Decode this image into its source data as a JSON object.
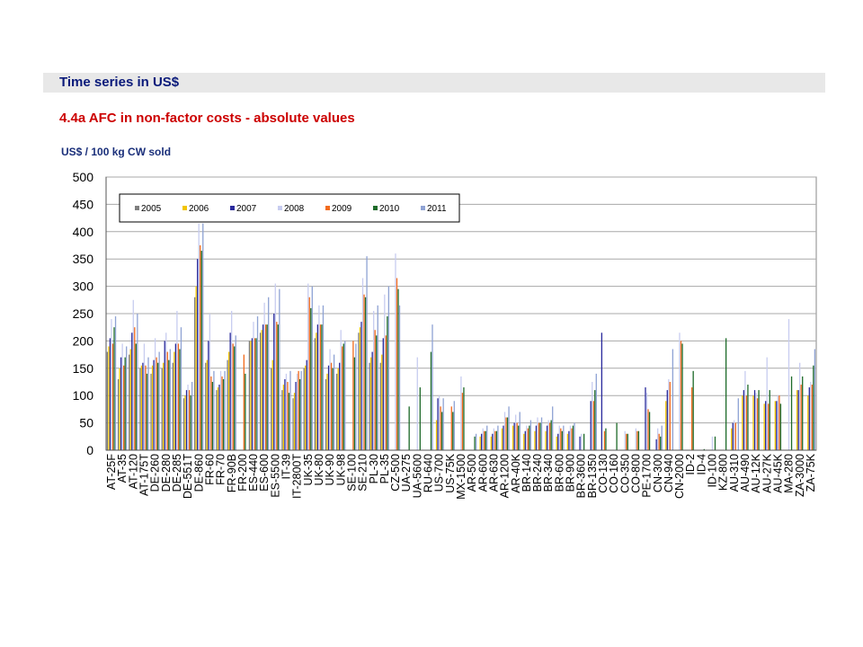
{
  "header": {
    "section_title": "Time series in US$",
    "subtitle": "4.4a   AFC in non-factor costs - absolute values"
  },
  "chart_data": {
    "type": "bar",
    "ylabel": "US$ / 100 kg CW sold",
    "ylim": [
      0,
      500
    ],
    "yticks": [
      0,
      50,
      100,
      150,
      200,
      250,
      300,
      350,
      400,
      450,
      500
    ],
    "grid": true,
    "legend_position": "top-left",
    "series": [
      {
        "name": "2005",
        "color": "#7f7f7f"
      },
      {
        "name": "2006",
        "color": "#f2c500"
      },
      {
        "name": "2007",
        "color": "#2a2a9c"
      },
      {
        "name": "2008",
        "color": "#c8cdf0"
      },
      {
        "name": "2009",
        "color": "#f26b1d"
      },
      {
        "name": "2010",
        "color": "#1e6b2a"
      },
      {
        "name": "2011",
        "color": "#8fa3d4"
      }
    ],
    "categories": [
      {
        "label": "AT-25F",
        "values": [
          180,
          190,
          205,
          240,
          195,
          225,
          245
        ]
      },
      {
        "label": "AT-35",
        "values": [
          130,
          150,
          170,
          195,
          155,
          170,
          190
        ]
      },
      {
        "label": "AT-120",
        "values": [
          175,
          185,
          215,
          275,
          225,
          195,
          250
        ]
      },
      {
        "label": "AT-175T",
        "values": [
          150,
          155,
          160,
          195,
          155,
          140,
          170
        ]
      },
      {
        "label": "DE-260",
        "values": [
          140,
          155,
          165,
          205,
          170,
          160,
          180
        ]
      },
      {
        "label": "DE-280",
        "values": [
          150,
          160,
          200,
          215,
          180,
          165,
          185
        ]
      },
      {
        "label": "DE-285",
        "values": [
          160,
          180,
          195,
          255,
          195,
          185,
          225
        ]
      },
      {
        "label": "DE-551T",
        "values": [
          95,
          100,
          110,
          120,
          110,
          100,
          125
        ]
      },
      {
        "label": "DE-860",
        "values": [
          280,
          300,
          350,
          415,
          375,
          365,
          415
        ]
      },
      {
        "label": "FR-60",
        "values": [
          160,
          165,
          200,
          250,
          135,
          125,
          145
        ]
      },
      {
        "label": "FR-70",
        "values": [
          110,
          115,
          120,
          145,
          135,
          130,
          145
        ]
      },
      {
        "label": "FR-90B",
        "values": [
          165,
          180,
          215,
          255,
          195,
          190,
          210
        ]
      },
      {
        "label": "FR-200",
        "values": [
          0,
          0,
          0,
          0,
          175,
          140,
          0
        ]
      },
      {
        "label": "ES-440",
        "values": [
          200,
          200,
          205,
          235,
          205,
          205,
          245
        ]
      },
      {
        "label": "ES-600",
        "values": [
          215,
          220,
          230,
          270,
          230,
          230,
          280
        ]
      },
      {
        "label": "ES-5500",
        "values": [
          150,
          165,
          250,
          305,
          235,
          230,
          295
        ]
      },
      {
        "label": "IT-39",
        "values": [
          110,
          120,
          130,
          140,
          125,
          105,
          145
        ]
      },
      {
        "label": "IT-2800T",
        "values": [
          95,
          105,
          125,
          140,
          145,
          130,
          145
        ]
      },
      {
        "label": "UK-35",
        "values": [
          150,
          155,
          165,
          305,
          280,
          260,
          300
        ]
      },
      {
        "label": "UK-80",
        "values": [
          205,
          215,
          230,
          265,
          230,
          230,
          265
        ]
      },
      {
        "label": "UK-90",
        "values": [
          130,
          140,
          155,
          185,
          160,
          150,
          175
        ]
      },
      {
        "label": "UK-98",
        "values": [
          140,
          150,
          160,
          220,
          190,
          195,
          200
        ]
      },
      {
        "label": "SE-100",
        "values": [
          0,
          0,
          0,
          0,
          200,
          170,
          195
        ]
      },
      {
        "label": "SE-210",
        "values": [
          215,
          225,
          235,
          315,
          285,
          280,
          355
        ]
      },
      {
        "label": "PL-30",
        "values": [
          160,
          170,
          180,
          255,
          220,
          210,
          265
        ]
      },
      {
        "label": "PL-35",
        "values": [
          160,
          175,
          205,
          285,
          210,
          245,
          300
        ]
      },
      {
        "label": "CZ-500",
        "values": [
          0,
          0,
          0,
          360,
          315,
          295,
          265
        ]
      },
      {
        "label": "UA-275",
        "values": [
          0,
          0,
          0,
          0,
          0,
          80,
          0
        ]
      },
      {
        "label": "UA-5600",
        "values": [
          0,
          0,
          0,
          170,
          0,
          115,
          0
        ]
      },
      {
        "label": "RU-640",
        "values": [
          0,
          0,
          0,
          0,
          0,
          180,
          230
        ]
      },
      {
        "label": "US-700",
        "values": [
          0,
          55,
          95,
          100,
          80,
          70,
          95
        ]
      },
      {
        "label": "US-75K",
        "values": [
          0,
          0,
          0,
          0,
          80,
          70,
          90
        ]
      },
      {
        "label": "MX-1500",
        "values": [
          0,
          0,
          0,
          135,
          105,
          115,
          0
        ]
      },
      {
        "label": "AR-500",
        "values": [
          0,
          0,
          0,
          0,
          0,
          25,
          30
        ]
      },
      {
        "label": "AR-600",
        "values": [
          0,
          25,
          30,
          40,
          35,
          35,
          45
        ]
      },
      {
        "label": "AR-630",
        "values": [
          0,
          25,
          30,
          40,
          35,
          35,
          45
        ]
      },
      {
        "label": "AR-1200",
        "values": [
          0,
          40,
          45,
          70,
          60,
          60,
          80
        ]
      },
      {
        "label": "AR-40K",
        "values": [
          0,
          45,
          50,
          65,
          50,
          45,
          70
        ]
      },
      {
        "label": "BR-140",
        "values": [
          0,
          30,
          35,
          45,
          40,
          45,
          55
        ]
      },
      {
        "label": "BR-240",
        "values": [
          0,
          35,
          45,
          60,
          50,
          50,
          60
        ]
      },
      {
        "label": "BR-340",
        "values": [
          0,
          35,
          45,
          55,
          50,
          55,
          80
        ]
      },
      {
        "label": "BR-600",
        "values": [
          0,
          25,
          30,
          45,
          40,
          35,
          45
        ]
      },
      {
        "label": "BR-900",
        "values": [
          0,
          30,
          35,
          45,
          40,
          45,
          50
        ]
      },
      {
        "label": "BR-3600",
        "values": [
          0,
          0,
          25,
          30,
          0,
          30,
          0
        ]
      },
      {
        "label": "BR-1350",
        "values": [
          0,
          0,
          90,
          125,
          90,
          110,
          140
        ]
      },
      {
        "label": "CO-130",
        "values": [
          0,
          0,
          215,
          0,
          35,
          40,
          0
        ]
      },
      {
        "label": "CO-160",
        "values": [
          0,
          0,
          0,
          0,
          0,
          50,
          0
        ]
      },
      {
        "label": "CO-350",
        "values": [
          0,
          0,
          0,
          35,
          30,
          30,
          0
        ]
      },
      {
        "label": "CO-800",
        "values": [
          0,
          0,
          0,
          40,
          35,
          35,
          0
        ]
      },
      {
        "label": "PE-1700",
        "values": [
          0,
          0,
          115,
          105,
          75,
          70,
          0
        ]
      },
      {
        "label": "CN-300",
        "values": [
          0,
          0,
          20,
          40,
          30,
          25,
          45
        ]
      },
      {
        "label": "CN-940",
        "values": [
          0,
          90,
          110,
          130,
          125,
          0,
          185
        ]
      },
      {
        "label": "CN-2000",
        "values": [
          0,
          0,
          0,
          215,
          200,
          195,
          0
        ]
      },
      {
        "label": "ID-2",
        "values": [
          0,
          0,
          0,
          0,
          115,
          145,
          0
        ]
      },
      {
        "label": "ID-4",
        "values": [
          0,
          0,
          0,
          0,
          0,
          2,
          0
        ]
      },
      {
        "label": "ID-100",
        "values": [
          0,
          0,
          0,
          25,
          0,
          25,
          0
        ]
      },
      {
        "label": "KZ-800",
        "values": [
          0,
          0,
          0,
          0,
          0,
          205,
          0
        ]
      },
      {
        "label": "AU-310",
        "values": [
          0,
          40,
          50,
          55,
          50,
          0,
          95
        ]
      },
      {
        "label": "AU-490",
        "values": [
          0,
          100,
          110,
          145,
          100,
          120,
          0
        ]
      },
      {
        "label": "AU-12K",
        "values": [
          0,
          100,
          110,
          105,
          95,
          110,
          0
        ]
      },
      {
        "label": "AU-27K",
        "values": [
          0,
          85,
          90,
          170,
          85,
          110,
          0
        ]
      },
      {
        "label": "AU-45K",
        "values": [
          0,
          90,
          90,
          100,
          100,
          85,
          0
        ]
      },
      {
        "label": "MA-280",
        "values": [
          0,
          0,
          0,
          240,
          0,
          135,
          0
        ]
      },
      {
        "label": "ZA-3000",
        "values": [
          0,
          110,
          110,
          160,
          120,
          135,
          0
        ]
      },
      {
        "label": "ZA-75K",
        "values": [
          0,
          100,
          115,
          125,
          120,
          155,
          185
        ]
      }
    ]
  }
}
